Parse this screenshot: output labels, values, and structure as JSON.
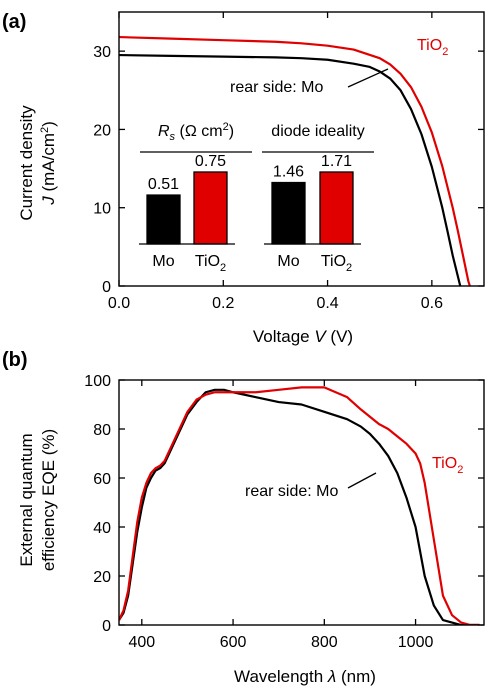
{
  "chart_data": [
    {
      "panel": "(a)",
      "type": "line",
      "xlabel": "Voltage V (V)",
      "xlabel_parts": [
        "Voltage ",
        "V",
        " (V)"
      ],
      "ylabel_line1": "Current density",
      "ylabel_line2_parts": [
        "J",
        " (mA/cm",
        "2",
        ")"
      ],
      "xlim": [
        0.0,
        0.7
      ],
      "ylim": [
        0,
        35
      ],
      "xticks": [
        0.0,
        0.2,
        0.4,
        0.6
      ],
      "xtick_labels": [
        "0.0",
        "0.2",
        "0.4",
        "0.6"
      ],
      "yticks": [
        0,
        10,
        20,
        30
      ],
      "ytick_labels": [
        "0",
        "10",
        "20",
        "30"
      ],
      "series": [
        {
          "name": "rear side: Mo",
          "color": "#000000",
          "x": [
            0.0,
            0.1,
            0.2,
            0.3,
            0.35,
            0.4,
            0.45,
            0.48,
            0.5,
            0.52,
            0.54,
            0.56,
            0.58,
            0.6,
            0.62,
            0.63,
            0.64,
            0.65,
            0.66
          ],
          "y": [
            29.5,
            29.4,
            29.3,
            29.2,
            29.1,
            28.9,
            28.4,
            28.0,
            27.4,
            26.5,
            25.0,
            22.6,
            19.4,
            15.2,
            10.0,
            7.0,
            3.9,
            1.2,
            -1.5
          ]
        },
        {
          "name": "TiO2",
          "color": "#e00000",
          "x": [
            0.0,
            0.1,
            0.2,
            0.3,
            0.35,
            0.4,
            0.45,
            0.5,
            0.52,
            0.54,
            0.56,
            0.58,
            0.6,
            0.62,
            0.64,
            0.65,
            0.66,
            0.67,
            0.68
          ],
          "y": [
            31.8,
            31.6,
            31.4,
            31.2,
            31.0,
            30.7,
            30.2,
            29.1,
            28.3,
            27.1,
            25.4,
            22.9,
            19.6,
            15.3,
            10.0,
            7.0,
            3.8,
            0.6,
            -1.5
          ]
        }
      ],
      "annotations": {
        "tio2_main": "TiO",
        "tio2_sub": "2",
        "mo": "rear side: Mo"
      },
      "insets": [
        {
          "type": "bar",
          "title_parts": [
            "R",
            "s",
            " (Ω cm",
            "2",
            ")"
          ],
          "categories": [
            {
              "main": "Mo",
              "sub": ""
            },
            {
              "main": "TiO",
              "sub": "2"
            }
          ],
          "values": [
            0.51,
            0.75
          ],
          "value_labels": [
            "0.51",
            "0.75"
          ],
          "colors": [
            "#000000",
            "#e00000"
          ]
        },
        {
          "type": "bar",
          "title_parts": [
            "diode ideality",
            "",
            "",
            "",
            ""
          ],
          "categories": [
            {
              "main": "Mo",
              "sub": ""
            },
            {
              "main": "TiO",
              "sub": "2"
            }
          ],
          "values": [
            1.46,
            1.71
          ],
          "value_labels": [
            "1.46",
            "1.71"
          ],
          "colors": [
            "#000000",
            "#e00000"
          ]
        }
      ]
    },
    {
      "panel": "(b)",
      "type": "line",
      "xlabel_parts": [
        "Wavelength ",
        "λ",
        " (nm)"
      ],
      "ylabel_line1": "External quantum",
      "ylabel_line2": "efficiency EQE (%)",
      "xlim": [
        350,
        1150
      ],
      "ylim": [
        0,
        100
      ],
      "xticks": [
        400,
        600,
        800,
        1000
      ],
      "xtick_labels": [
        "400",
        "600",
        "800",
        "1000"
      ],
      "yticks": [
        0,
        20,
        40,
        60,
        80,
        100
      ],
      "ytick_labels": [
        "0",
        "20",
        "40",
        "60",
        "80",
        "100"
      ],
      "series": [
        {
          "name": "rear side: Mo",
          "color": "#000000",
          "x": [
            350,
            360,
            370,
            380,
            390,
            400,
            410,
            420,
            430,
            440,
            450,
            460,
            480,
            500,
            520,
            540,
            560,
            580,
            600,
            650,
            700,
            750,
            800,
            850,
            880,
            900,
            920,
            940,
            960,
            980,
            1000,
            1010,
            1020,
            1040,
            1060,
            1080,
            1100,
            1120,
            1140
          ],
          "y": [
            2,
            5,
            12,
            25,
            38,
            48,
            56,
            60,
            63,
            64,
            66,
            70,
            78,
            86,
            91,
            95,
            96,
            96,
            95,
            93,
            91,
            90,
            87,
            84,
            81,
            78,
            74,
            69,
            62,
            52,
            40,
            30,
            20,
            8,
            2,
            1,
            0,
            0,
            0
          ]
        },
        {
          "name": "TiO2",
          "color": "#e00000",
          "x": [
            350,
            360,
            370,
            380,
            390,
            400,
            410,
            420,
            430,
            440,
            450,
            460,
            480,
            500,
            520,
            540,
            560,
            580,
            600,
            650,
            700,
            750,
            800,
            850,
            880,
            900,
            920,
            940,
            960,
            980,
            1000,
            1010,
            1020,
            1040,
            1060,
            1080,
            1100,
            1120,
            1140
          ],
          "y": [
            2,
            6,
            14,
            28,
            42,
            52,
            58,
            62,
            64,
            65,
            67,
            71,
            79,
            87,
            92,
            94,
            95,
            95,
            95,
            95,
            96,
            97,
            97,
            93,
            88,
            85,
            82,
            80,
            77,
            74,
            70,
            66,
            58,
            35,
            12,
            4,
            1,
            0,
            0
          ]
        }
      ],
      "annotations": {
        "tio2_main": "TiO",
        "tio2_sub": "2",
        "mo": "rear side: Mo"
      }
    }
  ]
}
